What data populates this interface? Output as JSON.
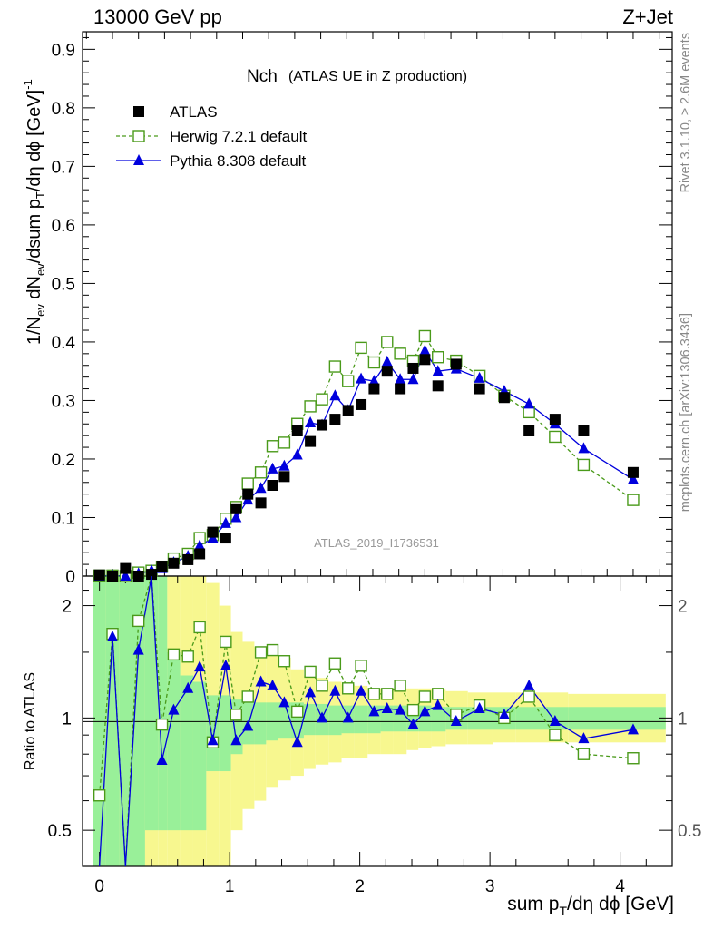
{
  "header": {
    "left": "13000 GeV pp",
    "right": "Z+Jet"
  },
  "side_labels": {
    "rivet": "Rivet 3.1.10, ≥ 2.6M events",
    "mcplots": "mcplots.cern.ch [arXiv:1306.3436]"
  },
  "colors": {
    "atlas": "#000000",
    "herwig": "#4a9a1a",
    "pythia": "#0000dd",
    "band_inner": "#99f099",
    "band_outer": "#f7f78f"
  },
  "chart_data": [
    {
      "type": "scatter",
      "title": "Nch",
      "subtitle": "(ATLAS UE in Z production)",
      "watermark": "ATLAS_2019_I1736531",
      "xlabel": "sum p_T/dη dϕ [GeV]",
      "ylabel": "1/N_ev dN_ev/dsum p_T/dη dϕ [GeV]^-1",
      "xlim": [
        -0.13,
        4.4
      ],
      "ylim": [
        0,
        0.93
      ],
      "grid": false,
      "legend_position": "top-left",
      "y_ticks": [
        "0",
        "0.1",
        "0.2",
        "0.3",
        "0.4",
        "0.5",
        "0.6",
        "0.7",
        "0.8",
        "0.9"
      ],
      "x": [
        0.0,
        0.1,
        0.2,
        0.3,
        0.4,
        0.48,
        0.57,
        0.68,
        0.77,
        0.87,
        0.97,
        1.05,
        1.14,
        1.24,
        1.33,
        1.42,
        1.52,
        1.62,
        1.71,
        1.81,
        1.91,
        2.01,
        2.11,
        2.21,
        2.31,
        2.41,
        2.5,
        2.6,
        2.74,
        2.92,
        3.11,
        3.3,
        3.5,
        3.72,
        4.1
      ],
      "series": [
        {
          "name": "ATLAS",
          "marker": "square-filled",
          "values": [
            0.002,
            0.0,
            0.013,
            0.0,
            0.003,
            0.017,
            0.022,
            0.028,
            0.038,
            0.075,
            0.065,
            0.115,
            0.14,
            0.125,
            0.155,
            0.17,
            0.248,
            0.23,
            0.258,
            0.268,
            0.283,
            0.293,
            0.32,
            0.35,
            0.32,
            0.355,
            0.37,
            0.325,
            0.362,
            0.32,
            0.305,
            0.248,
            0.268,
            0.248,
            0.177
          ]
        },
        {
          "name": "Herwig 7.2.1 default",
          "marker": "square-open",
          "dashed": true,
          "values": [
            0.001,
            0.001,
            0.0,
            0.006,
            0.009,
            0.016,
            0.03,
            0.038,
            0.065,
            0.07,
            0.098,
            0.118,
            0.158,
            0.177,
            0.222,
            0.228,
            0.26,
            0.29,
            0.302,
            0.358,
            0.333,
            0.39,
            0.365,
            0.4,
            0.38,
            0.368,
            0.41,
            0.374,
            0.368,
            0.342,
            0.308,
            0.28,
            0.238,
            0.19,
            0.13
          ]
        },
        {
          "name": "Pythia 8.308 default",
          "marker": "triangle-filled",
          "values": [
            0.0,
            0.001,
            0.0,
            0.004,
            0.009,
            0.013,
            0.023,
            0.034,
            0.052,
            0.065,
            0.09,
            0.1,
            0.13,
            0.15,
            0.183,
            0.188,
            0.207,
            0.262,
            0.258,
            0.308,
            0.283,
            0.337,
            0.333,
            0.366,
            0.336,
            0.336,
            0.385,
            0.35,
            0.354,
            0.338,
            0.316,
            0.294,
            0.26,
            0.218,
            0.165
          ]
        }
      ]
    },
    {
      "type": "line",
      "ylabel": "Ratio to ATLAS",
      "xlabel": "sum p_T/dη dϕ [GeV]",
      "log_y": true,
      "ylim": [
        0.4,
        2.4
      ],
      "x_ticks": [
        "0",
        "1",
        "2",
        "3",
        "4"
      ],
      "y_ticks": [
        "0.5",
        "1",
        "2"
      ],
      "x": [
        0.0,
        0.1,
        0.2,
        0.3,
        0.4,
        0.48,
        0.57,
        0.68,
        0.77,
        0.87,
        0.97,
        1.05,
        1.14,
        1.24,
        1.33,
        1.42,
        1.52,
        1.62,
        1.71,
        1.81,
        1.91,
        2.01,
        2.11,
        2.21,
        2.31,
        2.41,
        2.5,
        2.6,
        2.74,
        2.92,
        3.11,
        3.3,
        3.5,
        3.72,
        4.1
      ],
      "band_x_edges": [
        -0.05,
        0.05,
        0.15,
        0.25,
        0.35,
        0.45,
        0.52,
        0.62,
        0.72,
        0.82,
        0.92,
        1.01,
        1.1,
        1.19,
        1.28,
        1.37,
        1.47,
        1.57,
        1.66,
        1.76,
        1.86,
        1.96,
        2.06,
        2.16,
        2.26,
        2.36,
        2.45,
        2.55,
        2.66,
        2.83,
        3.02,
        3.2,
        3.4,
        3.6,
        3.85,
        4.35
      ],
      "band_inner": [
        [
          0.4,
          2.4
        ],
        [
          0.4,
          2.4
        ],
        [
          0.4,
          2.4
        ],
        [
          0.4,
          2.4
        ],
        [
          0.5,
          2.4
        ],
        [
          0.5,
          2.4
        ],
        [
          0.5,
          1.5
        ],
        [
          0.5,
          1.3
        ],
        [
          0.5,
          1.25
        ],
        [
          0.72,
          1.15
        ],
        [
          0.72,
          1.15
        ],
        [
          0.8,
          1.12
        ],
        [
          0.85,
          1.12
        ],
        [
          0.85,
          1.1
        ],
        [
          0.87,
          1.1
        ],
        [
          0.88,
          1.1
        ],
        [
          0.88,
          1.1
        ],
        [
          0.9,
          1.09
        ],
        [
          0.9,
          1.09
        ],
        [
          0.9,
          1.08
        ],
        [
          0.91,
          1.08
        ],
        [
          0.91,
          1.08
        ],
        [
          0.91,
          1.08
        ],
        [
          0.92,
          1.08
        ],
        [
          0.92,
          1.08
        ],
        [
          0.92,
          1.08
        ],
        [
          0.92,
          1.08
        ],
        [
          0.92,
          1.07
        ],
        [
          0.93,
          1.07
        ],
        [
          0.93,
          1.07
        ],
        [
          0.93,
          1.07
        ],
        [
          0.93,
          1.07
        ],
        [
          0.93,
          1.07
        ],
        [
          0.93,
          1.07
        ],
        [
          0.93,
          1.07
        ]
      ],
      "band_outer": [
        [
          0.4,
          2.4
        ],
        [
          0.4,
          2.4
        ],
        [
          0.4,
          2.4
        ],
        [
          0.4,
          2.4
        ],
        [
          0.4,
          2.4
        ],
        [
          0.4,
          2.4
        ],
        [
          0.4,
          2.4
        ],
        [
          0.4,
          2.4
        ],
        [
          0.4,
          2.4
        ],
        [
          0.4,
          2.3
        ],
        [
          0.4,
          2.0
        ],
        [
          0.5,
          1.7
        ],
        [
          0.57,
          1.6
        ],
        [
          0.6,
          1.55
        ],
        [
          0.65,
          1.5
        ],
        [
          0.68,
          1.45
        ],
        [
          0.7,
          1.35
        ],
        [
          0.73,
          1.3
        ],
        [
          0.75,
          1.28
        ],
        [
          0.76,
          1.25
        ],
        [
          0.78,
          1.23
        ],
        [
          0.78,
          1.22
        ],
        [
          0.8,
          1.2
        ],
        [
          0.8,
          1.2
        ],
        [
          0.8,
          1.2
        ],
        [
          0.82,
          1.2
        ],
        [
          0.83,
          1.2
        ],
        [
          0.84,
          1.19
        ],
        [
          0.85,
          1.18
        ],
        [
          0.85,
          1.17
        ],
        [
          0.86,
          1.17
        ],
        [
          0.86,
          1.17
        ],
        [
          0.86,
          1.17
        ],
        [
          0.86,
          1.16
        ],
        [
          0.86,
          1.16
        ]
      ],
      "series": [
        {
          "name": "Herwig 7.2.1 default",
          "marker": "square-open",
          "dashed": true,
          "values": [
            0.62,
            1.68,
            0.3,
            1.82,
            3.0,
            0.96,
            1.48,
            1.46,
            1.75,
            0.86,
            1.6,
            1.02,
            1.14,
            1.5,
            1.52,
            1.42,
            1.04,
            1.33,
            1.22,
            1.4,
            1.2,
            1.38,
            1.16,
            1.16,
            1.22,
            1.05,
            1.14,
            1.16,
            1.02,
            1.08,
            1.0,
            1.14,
            0.9,
            0.8,
            0.78
          ]
        },
        {
          "name": "Pythia 8.308 default",
          "marker": "triangle-filled",
          "values": [
            0.3,
            1.65,
            0.3,
            1.52,
            3.0,
            0.77,
            1.05,
            1.2,
            1.37,
            0.87,
            1.38,
            0.87,
            0.95,
            1.25,
            1.22,
            1.1,
            0.86,
            1.17,
            1.0,
            1.18,
            1.0,
            1.18,
            1.04,
            1.06,
            1.05,
            0.96,
            1.04,
            1.08,
            0.98,
            1.06,
            1.02,
            1.22,
            0.98,
            0.88,
            0.93
          ]
        }
      ]
    }
  ]
}
